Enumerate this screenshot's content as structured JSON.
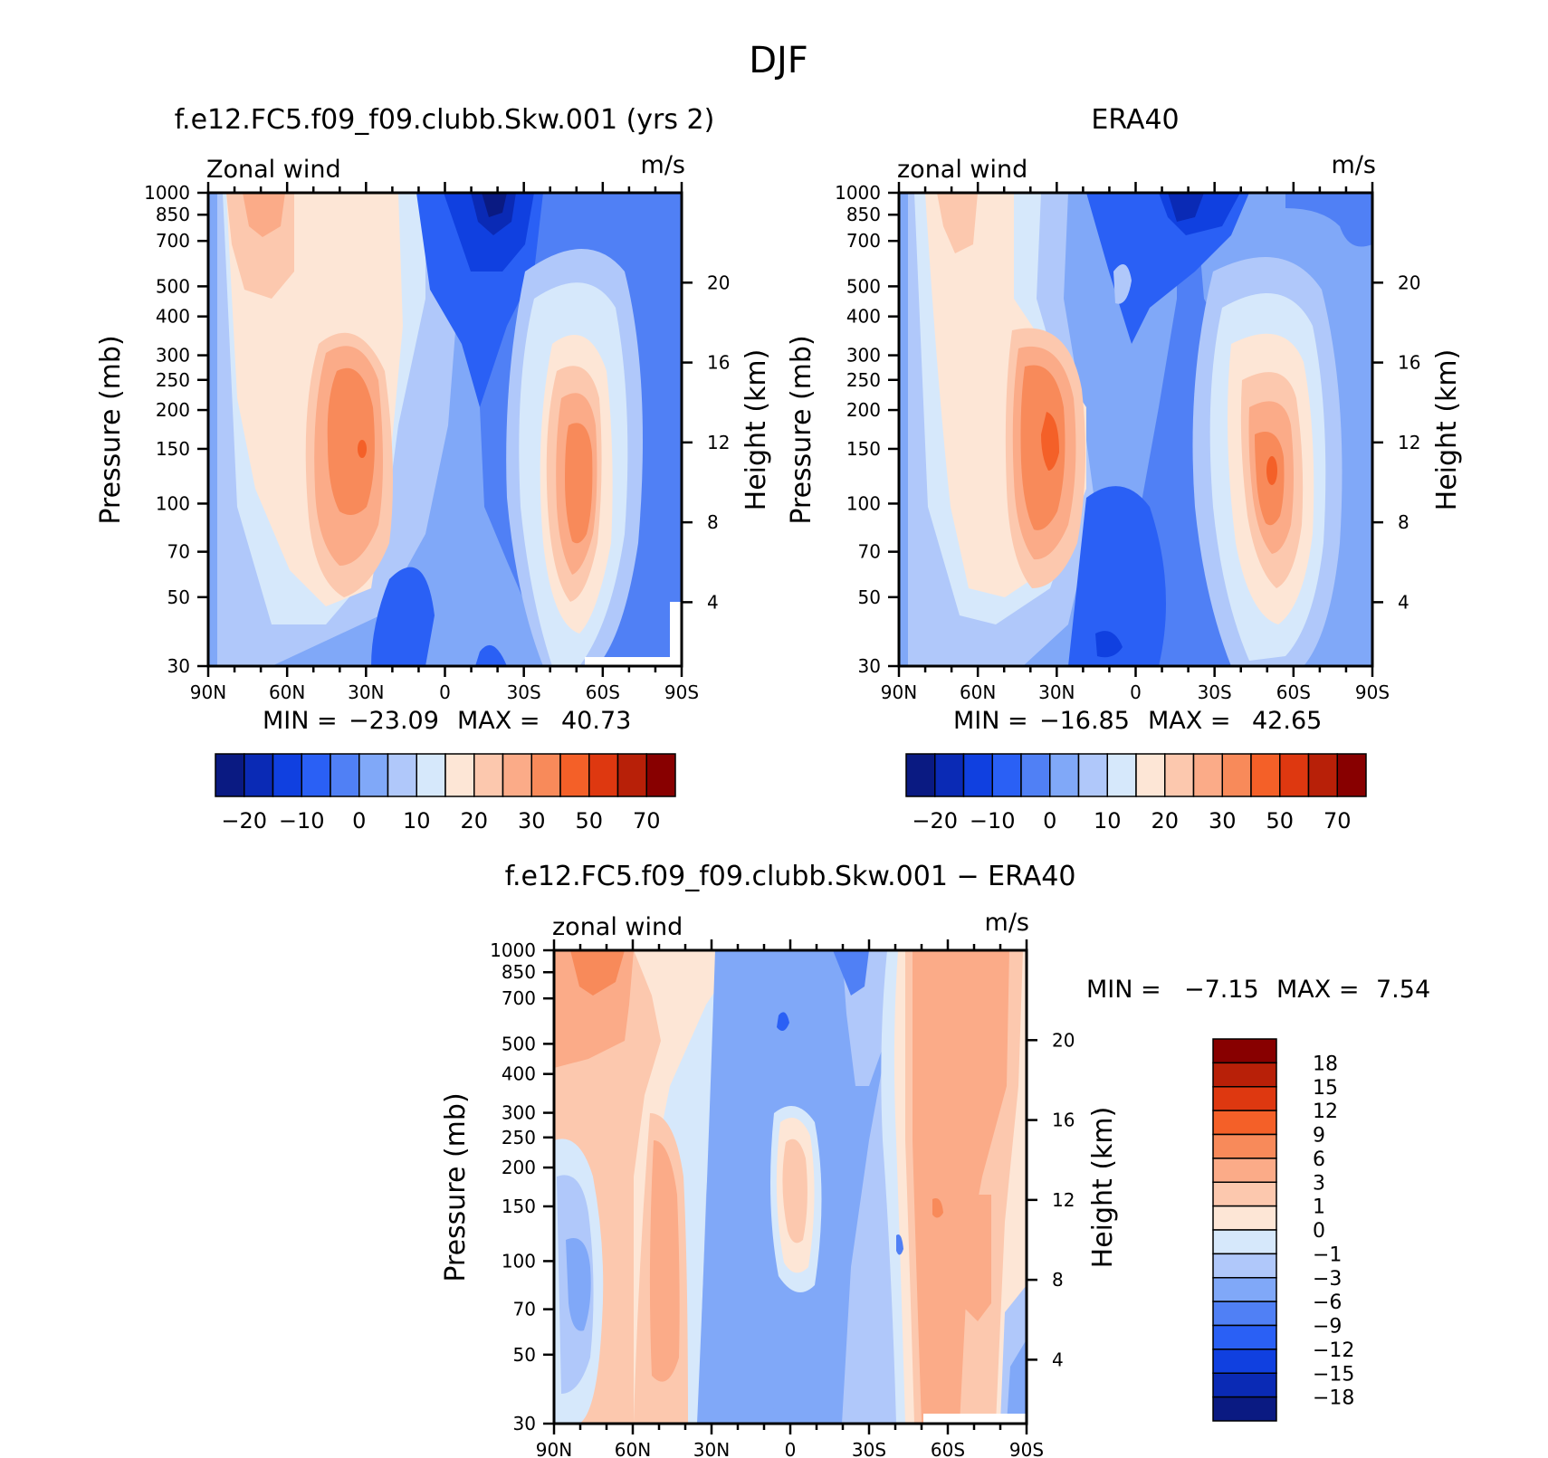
{
  "figure_title": "DJF",
  "chart_data": [
    {
      "type": "contour",
      "title": "f.e12.FC5.f09_f09.clubb.Skw.001 (yrs 2)",
      "field_label": "Zonal wind",
      "units": "m/s",
      "ylabel": "Pressure (mb)",
      "ylabel_right": "Height (km)",
      "x_ticks": [
        "90N",
        "60N",
        "30N",
        "0",
        "30S",
        "60S",
        "90S"
      ],
      "x_range": [
        90,
        -90
      ],
      "pressure_ticks": [
        "30",
        "50",
        "70",
        "100",
        "150",
        "200",
        "250",
        "300",
        "400",
        "500",
        "700",
        "850",
        "1000"
      ],
      "pressure_values": [
        30,
        50,
        70,
        100,
        150,
        200,
        250,
        300,
        400,
        500,
        700,
        850,
        1000
      ],
      "height_ticks": [
        "20",
        "16",
        "12",
        "8",
        "4"
      ],
      "height_values": [
        20,
        16,
        12,
        8,
        4
      ],
      "min_label": "MIN =",
      "min_value": "−23.09",
      "max_label": "MAX =",
      "max_value": "40.73",
      "colorbar": {
        "orientation": "horizontal",
        "colors": [
          "#0a1a82",
          "#0a2ab5",
          "#1040e0",
          "#2a60f5",
          "#5080f5",
          "#80a8f8",
          "#b0c8fa",
          "#d6e8fb",
          "#fde6d6",
          "#fcc8ae",
          "#fbab88",
          "#f88a5a",
          "#f46028",
          "#de3810",
          "#b82008",
          "#880000"
        ],
        "tick_labels": [
          "−20",
          "−10",
          "0",
          "10",
          "20",
          "30",
          "50",
          "70"
        ]
      }
    },
    {
      "type": "contour",
      "title": "ERA40",
      "field_label": "zonal wind",
      "units": "m/s",
      "ylabel": "Pressure (mb)",
      "ylabel_right": "Height (km)",
      "x_ticks": [
        "90N",
        "60N",
        "30N",
        "0",
        "30S",
        "60S",
        "90S"
      ],
      "x_range": [
        90,
        -90
      ],
      "pressure_ticks": [
        "30",
        "50",
        "70",
        "100",
        "150",
        "200",
        "250",
        "300",
        "400",
        "500",
        "700",
        "850",
        "1000"
      ],
      "pressure_values": [
        30,
        50,
        70,
        100,
        150,
        200,
        250,
        300,
        400,
        500,
        700,
        850,
        1000
      ],
      "height_ticks": [
        "20",
        "16",
        "12",
        "8",
        "4"
      ],
      "height_values": [
        20,
        16,
        12,
        8,
        4
      ],
      "min_label": "MIN =",
      "min_value": "−16.85",
      "max_label": "MAX =",
      "max_value": "42.65",
      "colorbar": {
        "orientation": "horizontal",
        "colors": [
          "#0a1a82",
          "#0a2ab5",
          "#1040e0",
          "#2a60f5",
          "#5080f5",
          "#80a8f8",
          "#b0c8fa",
          "#d6e8fb",
          "#fde6d6",
          "#fcc8ae",
          "#fbab88",
          "#f88a5a",
          "#f46028",
          "#de3810",
          "#b82008",
          "#880000"
        ],
        "tick_labels": [
          "−20",
          "−10",
          "0",
          "10",
          "20",
          "30",
          "50",
          "70"
        ]
      }
    },
    {
      "type": "contour",
      "title": "f.e12.FC5.f09_f09.clubb.Skw.001 − ERA40",
      "field_label": "zonal wind",
      "units": "m/s",
      "ylabel": "Pressure (mb)",
      "ylabel_right": "Height (km)",
      "x_ticks": [
        "90N",
        "60N",
        "30N",
        "0",
        "30S",
        "60S",
        "90S"
      ],
      "x_range": [
        90,
        -90
      ],
      "pressure_ticks": [
        "30",
        "50",
        "70",
        "100",
        "150",
        "200",
        "250",
        "300",
        "400",
        "500",
        "700",
        "850",
        "1000"
      ],
      "pressure_values": [
        30,
        50,
        70,
        100,
        150,
        200,
        250,
        300,
        400,
        500,
        700,
        850,
        1000
      ],
      "height_ticks": [
        "20",
        "16",
        "12",
        "8",
        "4"
      ],
      "height_values": [
        20,
        16,
        12,
        8,
        4
      ],
      "min_label": "MIN =",
      "min_value": "−7.15",
      "max_label": "MAX =",
      "max_value": "7.54",
      "colorbar": {
        "orientation": "vertical",
        "colors": [
          "#880000",
          "#b82008",
          "#de3810",
          "#f46028",
          "#f88a5a",
          "#fbab88",
          "#fcc8ae",
          "#fde6d6",
          "#d6e8fb",
          "#b0c8fa",
          "#80a8f8",
          "#5080f5",
          "#2a60f5",
          "#1040e0",
          "#0a2ab5",
          "#0a1a82"
        ],
        "tick_labels": [
          "18",
          "15",
          "12",
          "9",
          "6",
          "3",
          "1",
          "0",
          "−1",
          "−3",
          "−6",
          "−9",
          "−12",
          "−15",
          "−18"
        ]
      }
    }
  ]
}
